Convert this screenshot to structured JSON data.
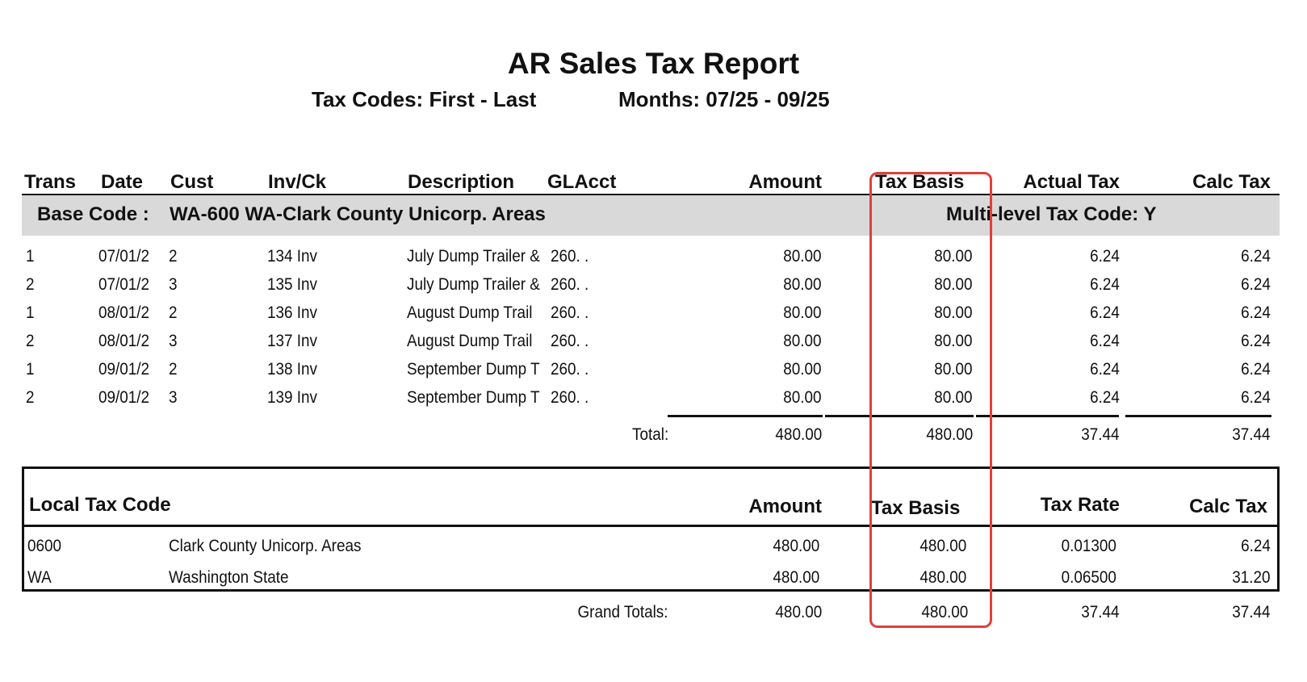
{
  "report": {
    "title": "AR Sales Tax Report",
    "tax_codes": "Tax Codes: First  -  Last",
    "months": "Months: 07/25 - 09/25"
  },
  "columns": {
    "trans": "Trans",
    "date": "Date",
    "cust": "Cust",
    "invck": "Inv/Ck",
    "description": "Description",
    "glacct": "GLAcct",
    "amount": "Amount",
    "tax_basis": "Tax Basis",
    "actual_tax": "Actual Tax",
    "calc_tax": "Calc Tax"
  },
  "base_code": {
    "label": "Base Code :",
    "value": "WA-600 WA-Clark County Unicorp. Areas",
    "multilevel": "Multi-level Tax Code: Y"
  },
  "rows": [
    {
      "trans": "1",
      "date": "07/01/2",
      "cust": "2",
      "invck": "134 Inv",
      "description": "July Dump Trailer &",
      "glacct": "260.  .",
      "amount": "80.00",
      "tax_basis": "80.00",
      "actual_tax": "6.24",
      "calc_tax": "6.24"
    },
    {
      "trans": "2",
      "date": "07/01/2",
      "cust": "3",
      "invck": "135 Inv",
      "description": "July Dump Trailer &",
      "glacct": "260.  .",
      "amount": "80.00",
      "tax_basis": "80.00",
      "actual_tax": "6.24",
      "calc_tax": "6.24"
    },
    {
      "trans": "1",
      "date": "08/01/2",
      "cust": "2",
      "invck": "136 Inv",
      "description": "August Dump Trail",
      "glacct": "260.  .",
      "amount": "80.00",
      "tax_basis": "80.00",
      "actual_tax": "6.24",
      "calc_tax": "6.24"
    },
    {
      "trans": "2",
      "date": "08/01/2",
      "cust": "3",
      "invck": "137 Inv",
      "description": "August Dump Trail",
      "glacct": "260.  .",
      "amount": "80.00",
      "tax_basis": "80.00",
      "actual_tax": "6.24",
      "calc_tax": "6.24"
    },
    {
      "trans": "1",
      "date": "09/01/2",
      "cust": "2",
      "invck": "138 Inv",
      "description": "September Dump T",
      "glacct": "260.  .",
      "amount": "80.00",
      "tax_basis": "80.00",
      "actual_tax": "6.24",
      "calc_tax": "6.24"
    },
    {
      "trans": "2",
      "date": "09/01/2",
      "cust": "3",
      "invck": "139 Inv",
      "description": "September Dump T",
      "glacct": "260.  .",
      "amount": "80.00",
      "tax_basis": "80.00",
      "actual_tax": "6.24",
      "calc_tax": "6.24"
    }
  ],
  "total": {
    "label": "Total:",
    "amount": "480.00",
    "tax_basis": "480.00",
    "actual_tax": "37.44",
    "calc_tax": "37.44"
  },
  "local": {
    "headers": {
      "code": "Local Tax Code",
      "amount": "Amount",
      "tax_basis": "Tax Basis",
      "tax_rate": "Tax Rate",
      "calc_tax": "Calc Tax"
    },
    "rows": [
      {
        "code": "0600",
        "name": "Clark County Unicorp. Areas",
        "amount": "480.00",
        "tax_basis": "480.00",
        "tax_rate": "0.01300",
        "calc_tax": "6.24"
      },
      {
        "code": "WA",
        "name": "Washington State",
        "amount": "480.00",
        "tax_basis": "480.00",
        "tax_rate": "0.06500",
        "calc_tax": "31.20"
      }
    ]
  },
  "grand_totals": {
    "label": "Grand Totals:",
    "amount": "480.00",
    "tax_basis": "480.00",
    "tax_rate": "37.44",
    "calc_tax": "37.44"
  },
  "colors": {
    "highlight": "#e0403a",
    "band": "#d9d9d9"
  }
}
